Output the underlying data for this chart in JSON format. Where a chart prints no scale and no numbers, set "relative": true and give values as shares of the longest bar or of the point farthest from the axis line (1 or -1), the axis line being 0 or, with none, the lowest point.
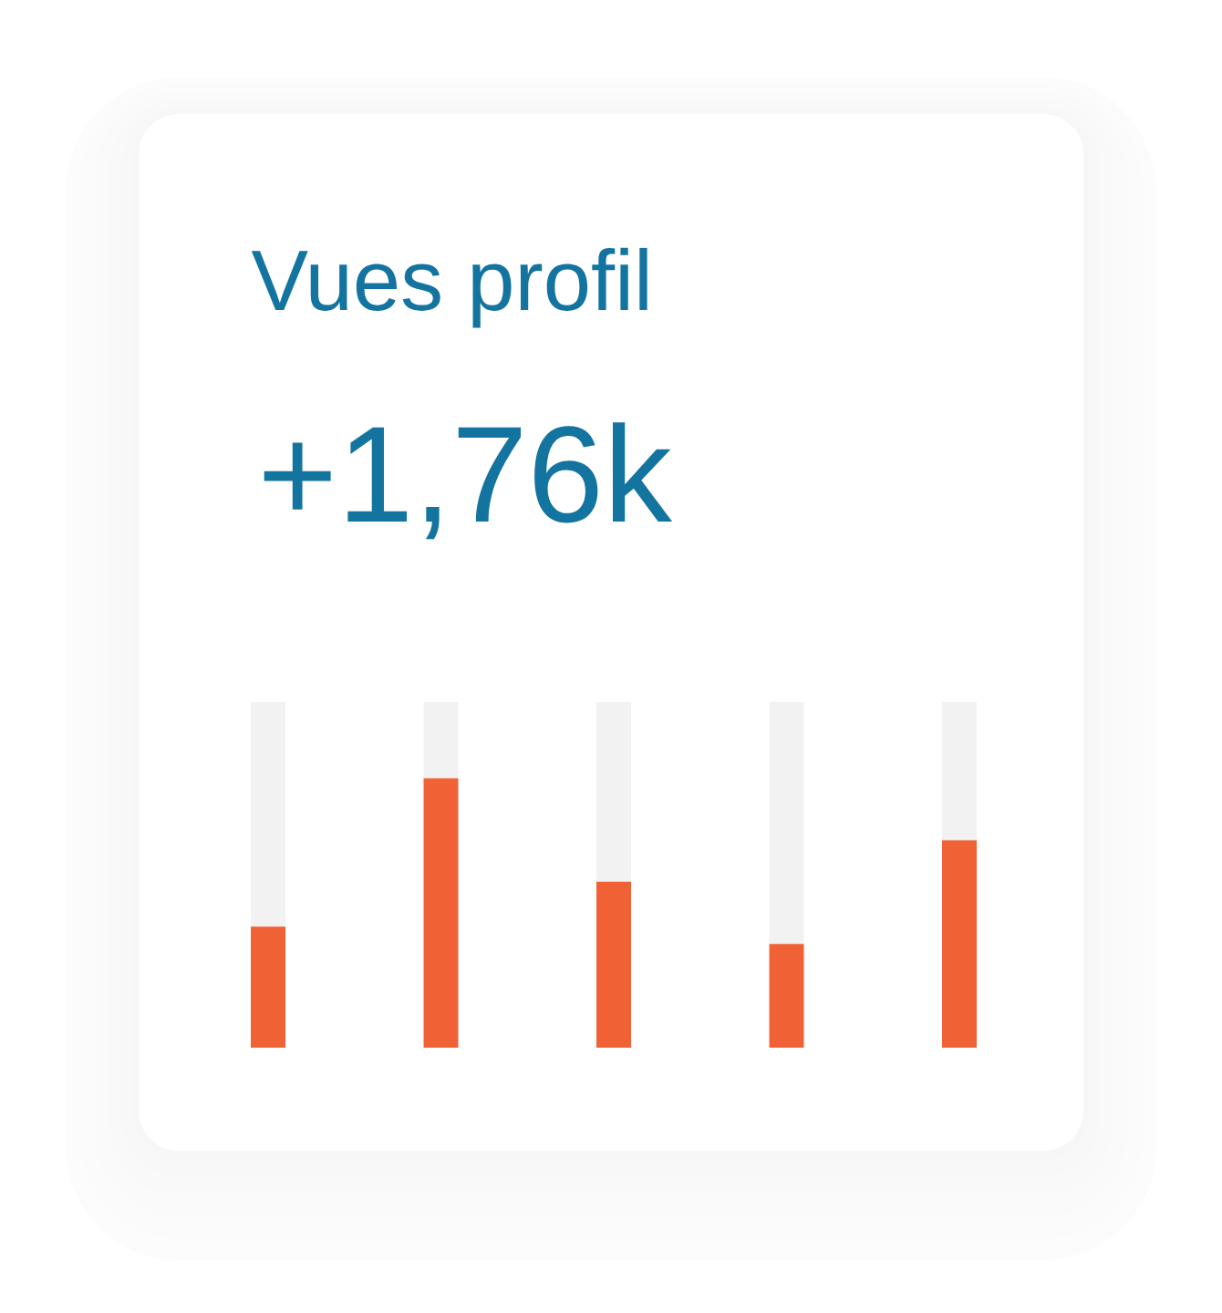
{
  "chart_data": {
    "type": "bar",
    "title": "Vues profil",
    "subtitle": "+1,76k",
    "categories": [
      null,
      null,
      null,
      null,
      null
    ],
    "relative": true,
    "stacked": true,
    "series": [
      {
        "color": "#f06236",
        "values": [
          0.35,
          0.78,
          0.48,
          0.3,
          0.6
        ]
      },
      {
        "color": "#f2f2f2",
        "values": [
          0.65,
          0.22,
          0.52,
          0.7,
          0.4
        ]
      }
    ]
  }
}
